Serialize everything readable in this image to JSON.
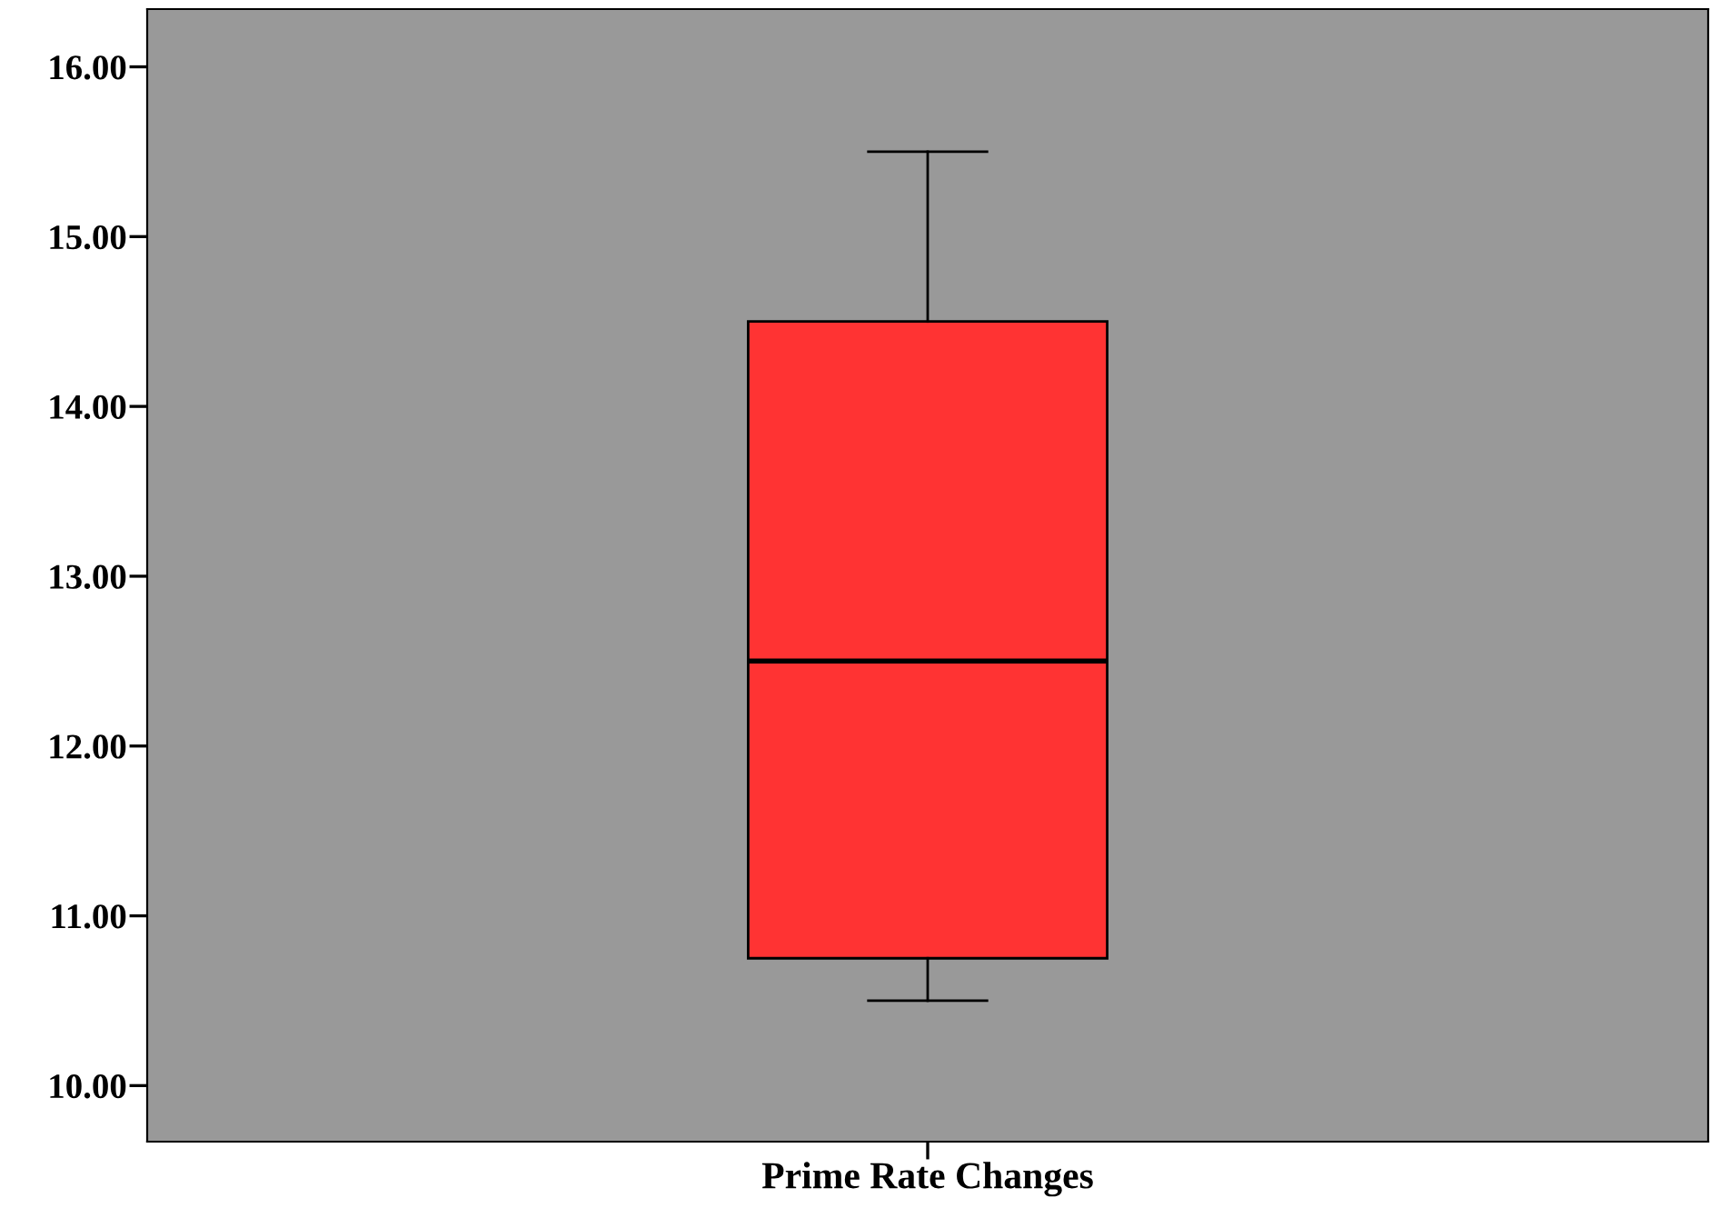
{
  "chart_data": {
    "type": "box",
    "categories": [
      "Prime Rate Changes"
    ],
    "boxes": [
      {
        "low": 10.5,
        "q1": 10.75,
        "median": 12.5,
        "q3": 14.5,
        "high": 15.5
      }
    ],
    "color": "#ff3333",
    "ylim": [
      9.67,
      16.34
    ],
    "yticks": [
      {
        "value": 10,
        "label": "10.00"
      },
      {
        "value": 11,
        "label": "11.00"
      },
      {
        "value": 12,
        "label": "12.00"
      },
      {
        "value": 13,
        "label": "13.00"
      },
      {
        "value": 14,
        "label": "14.00"
      },
      {
        "value": 15,
        "label": "15.00"
      },
      {
        "value": 16,
        "label": "16.00"
      }
    ],
    "grid": false,
    "legend": false
  }
}
